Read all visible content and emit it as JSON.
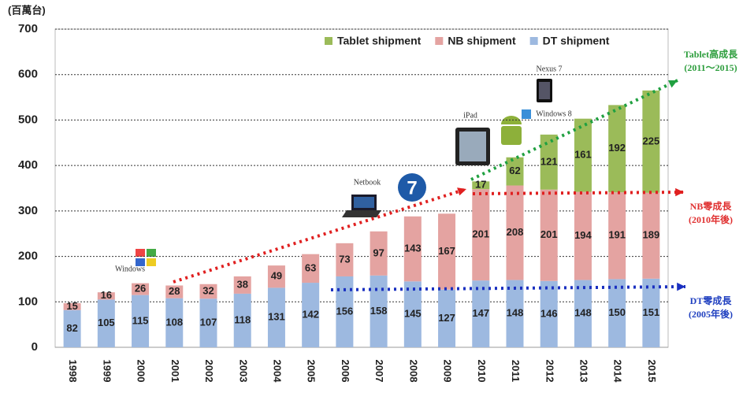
{
  "chart_data": {
    "type": "bar",
    "stacked": true,
    "y_label": "(百萬台)",
    "categories": [
      "1998",
      "1999",
      "2000",
      "2001",
      "2002",
      "2003",
      "2004",
      "2005",
      "2006",
      "2007",
      "2008",
      "2009",
      "2010",
      "2011",
      "2012",
      "2013",
      "2014",
      "2015"
    ],
    "series": [
      {
        "name": "DT shipment",
        "color": "#9db9e0",
        "values": [
          82,
          105,
          115,
          108,
          107,
          118,
          131,
          142,
          156,
          158,
          145,
          127,
          147,
          148,
          146,
          148,
          150,
          151
        ]
      },
      {
        "name": "NB shipment",
        "color": "#e4a3a1",
        "values": [
          15,
          16,
          26,
          28,
          32,
          38,
          49,
          63,
          73,
          97,
          143,
          167,
          201,
          208,
          201,
          194,
          191,
          189
        ]
      },
      {
        "name": "Tablet shipment",
        "color": "#9bbb59",
        "values": [
          null,
          null,
          null,
          null,
          null,
          null,
          null,
          null,
          null,
          null,
          null,
          null,
          17,
          62,
          121,
          161,
          192,
          225
        ]
      }
    ],
    "ylim": [
      0,
      700
    ],
    "yticks": [
      0,
      100,
      200,
      300,
      400,
      500,
      600,
      700
    ],
    "grid": true,
    "annotations": [
      {
        "text": "Tablet高成長",
        "color": "#2e9e3e"
      },
      {
        "text": "(2011～2015)",
        "color": "#2e9e3e"
      },
      {
        "text": "NB零成長",
        "color": "#e03030"
      },
      {
        "text": "(2010年後)",
        "color": "#e03030"
      },
      {
        "text": "DT零成長",
        "color": "#2040c0"
      },
      {
        "text": "(2005年後)",
        "color": "#2040c0"
      }
    ],
    "icon_labels": [
      "Windows",
      "Netbook",
      "iPad",
      "Windows 8",
      "Nexus 7"
    ]
  }
}
